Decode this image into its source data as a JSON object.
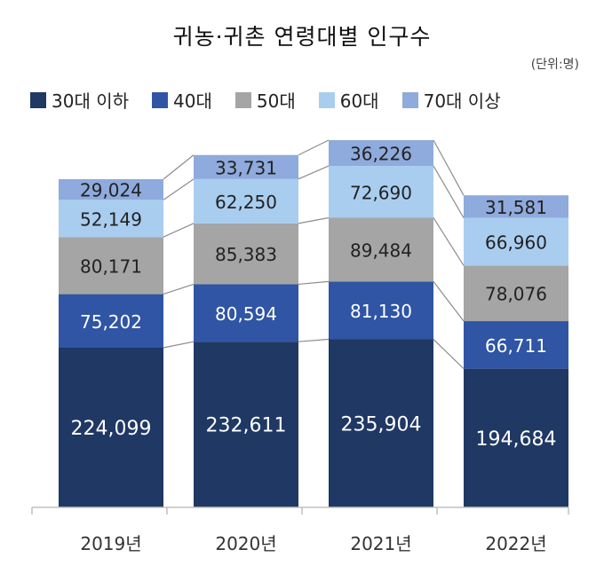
{
  "chart_data": {
    "type": "bar",
    "stacked": true,
    "title": "귀농·귀촌 연령대별 인구수",
    "unit_label": "(단위:명)",
    "categories": [
      "2019년",
      "2020년",
      "2021년",
      "2022년"
    ],
    "series": [
      {
        "name": "30대 이하",
        "color": "#1f3864",
        "values": [
          224099,
          232611,
          235904,
          194684
        ]
      },
      {
        "name": "40대",
        "color": "#2f55a4",
        "values": [
          75202,
          80594,
          81130,
          66711
        ]
      },
      {
        "name": "50대",
        "color": "#a5a5a5",
        "values": [
          80171,
          85383,
          89484,
          78076
        ]
      },
      {
        "name": "60대",
        "color": "#a9cdef",
        "values": [
          52149,
          62250,
          72690,
          66960
        ]
      },
      {
        "name": "70대 이상",
        "color": "#8faadc",
        "values": [
          29024,
          33731,
          36226,
          31581
        ]
      }
    ],
    "legend_position": "top",
    "grid": false
  }
}
